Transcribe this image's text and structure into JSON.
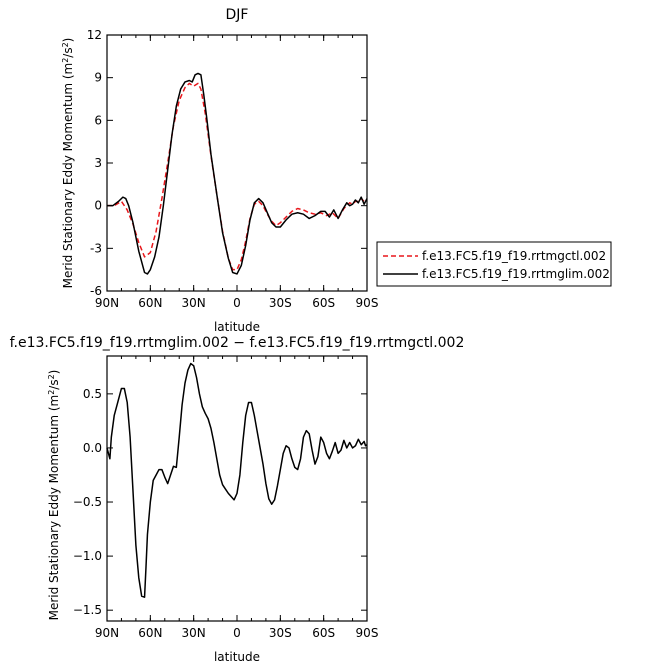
{
  "chart_data": [
    {
      "type": "line",
      "title": "DJF",
      "xlabel": "latitude",
      "ylabel": "Merid Stationary Eddy Momentum (m²/s²)",
      "ylabel_parts": {
        "main": "Merid Stationary Eddy Momentum (m",
        "sup": "2",
        "mid": "/s",
        "sup2": "2",
        "end": ")"
      },
      "xlim": [
        90,
        -90
      ],
      "ylim": [
        -6,
        12
      ],
      "x_ticks": [
        90,
        60,
        30,
        0,
        -30,
        -60,
        -90
      ],
      "x_tick_labels": [
        "90N",
        "60N",
        "30N",
        "0",
        "30S",
        "60S",
        "90S"
      ],
      "y_ticks": [
        -6,
        -3,
        0,
        3,
        6,
        9,
        12
      ],
      "y_tick_labels": [
        "-6",
        "-3",
        "0",
        "3",
        "6",
        "9",
        "12"
      ],
      "legend_position": "right, outside plot",
      "series": [
        {
          "name": "f.e13.FC5.f19_f19.rrtmgctl.002",
          "color": "#e8161b",
          "dash": "dashed",
          "x": [
            90,
            85,
            80,
            76,
            72,
            68,
            64,
            60,
            56,
            52,
            48,
            44,
            40,
            36,
            33,
            30,
            27,
            25,
            22,
            18,
            14,
            10,
            6,
            3,
            0,
            -3,
            -6,
            -9,
            -12,
            -15,
            -18,
            -21,
            -24,
            -27,
            -30,
            -34,
            -38,
            -42,
            -46,
            -50,
            -54,
            -58,
            -62,
            -66,
            -70,
            -74,
            -78,
            -80,
            -82,
            -84,
            -86,
            -88,
            -90
          ],
          "y": [
            0,
            0,
            0.3,
            -0.3,
            -1.3,
            -2.6,
            -3.6,
            -3.3,
            -1.8,
            0.5,
            3,
            5.6,
            7.4,
            8.3,
            8.6,
            8.4,
            8.6,
            8.2,
            6.5,
            3.5,
            0.8,
            -1.8,
            -3.7,
            -4.5,
            -4.5,
            -3.8,
            -2.5,
            -0.9,
            0.1,
            0.3,
            0,
            -0.6,
            -1.1,
            -1.4,
            -1.2,
            -0.8,
            -0.4,
            -0.2,
            -0.3,
            -0.5,
            -0.6,
            -0.5,
            -0.7,
            -0.5,
            -0.9,
            -0.2,
            0.2,
            0.1,
            0.3,
            0.3,
            0.5,
            0.3,
            0.4
          ]
        },
        {
          "name": "f.e13.FC5.f19_f19.rrtmglim.002",
          "color": "#000000",
          "dash": "solid",
          "x": [
            90,
            86,
            82,
            79,
            77,
            75,
            72,
            68,
            64,
            62,
            60,
            57,
            54,
            51,
            48,
            45,
            42,
            39,
            36,
            33,
            31,
            29,
            27,
            25,
            23,
            21,
            18,
            14,
            10,
            6,
            3,
            0,
            -3,
            -6,
            -9,
            -12,
            -15,
            -18,
            -21,
            -24,
            -27,
            -30,
            -34,
            -38,
            -42,
            -46,
            -50,
            -54,
            -58,
            -61,
            -64,
            -67,
            -70,
            -73,
            -76,
            -78,
            -80,
            -82,
            -84,
            -86,
            -88,
            -90
          ],
          "y": [
            0,
            0,
            0.3,
            0.6,
            0.5,
            0,
            -1.2,
            -3.2,
            -4.7,
            -4.8,
            -4.5,
            -3.6,
            -2.2,
            0,
            2.5,
            5,
            7,
            8.2,
            8.7,
            8.8,
            8.7,
            9.2,
            9.3,
            9.2,
            7.8,
            6.2,
            3.6,
            0.8,
            -1.9,
            -3.7,
            -4.7,
            -4.8,
            -4.2,
            -2.8,
            -1,
            0.2,
            0.5,
            0.2,
            -0.5,
            -1.2,
            -1.5,
            -1.5,
            -1.0,
            -0.6,
            -0.5,
            -0.6,
            -0.9,
            -0.7,
            -0.4,
            -0.4,
            -0.8,
            -0.3,
            -0.9,
            -0.3,
            0.2,
            0,
            0.1,
            0.4,
            0.2,
            0.6,
            0.1,
            0.5
          ]
        }
      ]
    },
    {
      "type": "line",
      "title": "f.e13.FC5.f19_f19.rrtmglim.002 − f.e13.FC5.f19_f19.rrtmgctl.002",
      "xlabel": "latitude",
      "ylabel": "Merid Stationary Eddy Momentum (m²/s²)",
      "ylabel_parts": {
        "main": "Merid Stationary Eddy Momentum (m",
        "sup": "2",
        "mid": "/s",
        "sup2": "2",
        "end": ")"
      },
      "xlim": [
        90,
        -90
      ],
      "ylim": [
        -1.6,
        0.85
      ],
      "x_ticks": [
        90,
        60,
        30,
        0,
        -30,
        -60,
        -90
      ],
      "x_tick_labels": [
        "90N",
        "60N",
        "30N",
        "0",
        "30S",
        "60S",
        "90S"
      ],
      "y_ticks": [
        -1.5,
        -1.0,
        -0.5,
        0.0,
        0.5
      ],
      "y_tick_labels": [
        "−1.5",
        "−1.0",
        "−0.5",
        "0.0",
        "0.5"
      ],
      "series": [
        {
          "color": "#000000",
          "dash": "solid",
          "x": [
            90,
            88,
            87,
            85,
            83,
            81,
            80,
            78,
            76,
            74,
            72,
            70,
            68,
            66,
            64,
            63,
            62,
            60,
            58,
            56,
            54,
            52,
            50,
            48,
            46,
            44,
            42,
            40,
            38,
            36,
            34,
            32,
            30,
            28,
            26,
            24,
            22,
            20,
            18,
            16,
            14,
            12,
            10,
            8,
            6,
            4,
            2,
            0,
            -2,
            -4,
            -6,
            -8,
            -10,
            -12,
            -14,
            -16,
            -18,
            -20,
            -22,
            -24,
            -26,
            -28,
            -30,
            -32,
            -34,
            -36,
            -38,
            -40,
            -42,
            -44,
            -46,
            -48,
            -50,
            -52,
            -54,
            -56,
            -58,
            -60,
            -62,
            -64,
            -66,
            -68,
            -70,
            -72,
            -74,
            -76,
            -78,
            -80,
            -82,
            -84,
            -86,
            -88,
            -89,
            -90
          ],
          "y": [
            0,
            -0.1,
            0.1,
            0.3,
            0.4,
            0.5,
            0.55,
            0.55,
            0.42,
            0.1,
            -0.4,
            -0.9,
            -1.2,
            -1.37,
            -1.38,
            -1.1,
            -0.8,
            -0.5,
            -0.3,
            -0.25,
            -0.2,
            -0.2,
            -0.27,
            -0.33,
            -0.25,
            -0.17,
            -0.18,
            0.1,
            0.4,
            0.6,
            0.72,
            0.78,
            0.76,
            0.65,
            0.5,
            0.38,
            0.32,
            0.27,
            0.18,
            0.05,
            -0.1,
            -0.25,
            -0.34,
            -0.38,
            -0.42,
            -0.45,
            -0.48,
            -0.42,
            -0.25,
            0.05,
            0.3,
            0.42,
            0.42,
            0.3,
            0.15,
            0,
            -0.15,
            -0.33,
            -0.47,
            -0.52,
            -0.48,
            -0.35,
            -0.2,
            -0.05,
            0.02,
            0,
            -0.1,
            -0.18,
            -0.2,
            -0.1,
            0.1,
            0.16,
            0.13,
            -0.02,
            -0.15,
            -0.08,
            0.1,
            0.05,
            -0.05,
            -0.1,
            -0.03,
            0.05,
            -0.05,
            -0.02,
            0.07,
            0.0,
            0.05,
            0.0,
            0.02,
            0.08,
            0.03,
            0.06,
            0.02,
            0.03
          ]
        }
      ]
    }
  ]
}
